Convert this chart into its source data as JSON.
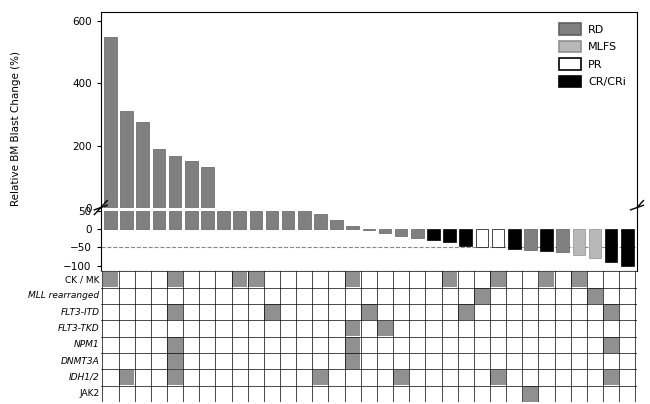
{
  "values": [
    550,
    310,
    275,
    190,
    165,
    150,
    130,
    50,
    50,
    50,
    50,
    50,
    50,
    40,
    25,
    8,
    -3,
    -10,
    -18,
    -25,
    -30,
    -35,
    -45,
    -50,
    -50,
    -55,
    -57,
    -60,
    -63,
    -70,
    -80,
    -90,
    -100
  ],
  "response": [
    "RD",
    "RD",
    "RD",
    "RD",
    "RD",
    "RD",
    "RD",
    "RD",
    "RD",
    "RD",
    "RD",
    "RD",
    "RD",
    "RD",
    "RD",
    "RD",
    "RD",
    "RD",
    "RD",
    "RD",
    "CR",
    "CR",
    "CR",
    "PR",
    "PR",
    "CR",
    "RD",
    "CR",
    "RD",
    "MLFS",
    "MLFS",
    "CR",
    "CR"
  ],
  "color_map": {
    "RD": "#808080",
    "MLFS": "#b8b8b8",
    "PR": "#ffffff",
    "CR": "#000000"
  },
  "edge_map": {
    "RD": "#606060",
    "MLFS": "#909090",
    "PR": "#000000",
    "CR": "#000000"
  },
  "ylabel": "Relative BM Blast Change (%)",
  "dashed_line": -50,
  "legend_labels": [
    "RD",
    "MLFS",
    "PR",
    "CR/CRi"
  ],
  "legend_keys": [
    "RD",
    "MLFS",
    "PR",
    "CR"
  ],
  "yticks_upper": [
    0,
    200,
    400,
    600
  ],
  "yticks_lower": [
    -100,
    -50,
    0,
    50
  ],
  "upper_ylim": [
    100,
    630
  ],
  "lower_ylim": [
    -115,
    58
  ],
  "break_val": 50,
  "mutation_rows": [
    {
      "label": "CK / MK",
      "italic": false,
      "filled": [
        1,
        5,
        9,
        10,
        16,
        22,
        25,
        28,
        30
      ]
    },
    {
      "label": "MLL rearranged",
      "italic": true,
      "filled": [
        24,
        31
      ]
    },
    {
      "label": "FLT3-ITD",
      "italic": true,
      "filled": [
        5,
        11,
        17,
        23,
        32
      ]
    },
    {
      "label": "FLT3-TKD",
      "italic": true,
      "filled": [
        16,
        18
      ]
    },
    {
      "label": "NPM1",
      "italic": true,
      "filled": [
        5,
        16,
        32
      ]
    },
    {
      "label": "DNMT3A",
      "italic": true,
      "filled": [
        5,
        16
      ]
    },
    {
      "label": "IDH1/2",
      "italic": true,
      "filled": [
        2,
        5,
        14,
        19,
        25,
        32
      ]
    },
    {
      "label": "JAK2",
      "italic": false,
      "filled": [
        27
      ]
    }
  ]
}
